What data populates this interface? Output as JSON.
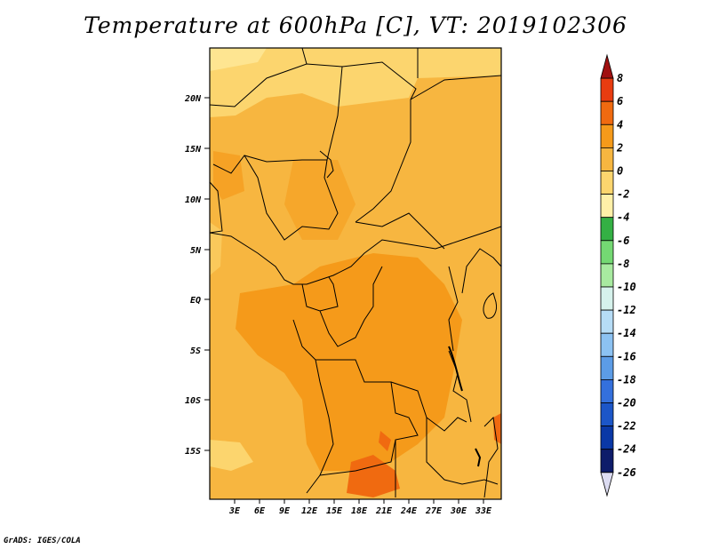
{
  "title": "Temperature at 600hPa [C], VT: 2019102306",
  "credit": "GrADS: IGES/COLA",
  "map": {
    "lat_labels": [
      "20N",
      "15N",
      "10N",
      "5N",
      "EQ",
      "5S",
      "10S",
      "15S"
    ],
    "lon_labels": [
      "3E",
      "6E",
      "9E",
      "12E",
      "15E",
      "18E",
      "21E",
      "24E",
      "27E",
      "30E",
      "33E"
    ]
  },
  "colorbar": {
    "labels": [
      "8",
      "6",
      "4",
      "2",
      "0",
      "-2",
      "-4",
      "-6",
      "-8",
      "-10",
      "-12",
      "-14",
      "-16",
      "-18",
      "-20",
      "-22",
      "-24",
      "-26"
    ],
    "colors": [
      "#a01010",
      "#e83c10",
      "#f06a10",
      "#f59a1a",
      "#f7b640",
      "#fcd56e",
      "#fff0a8",
      "#34b044",
      "#74d873",
      "#a8eaa0",
      "#d6f2ec",
      "#b6dcf6",
      "#8cc2f2",
      "#5c9ce6",
      "#3470dc",
      "#1c56c8",
      "#0a38a6",
      "#0e1c6a",
      "#dcdcf2"
    ]
  },
  "palette": {
    "warm_light": "#fcd56e",
    "warm_mid": "#f7b640",
    "warm_dark": "#f59a1a",
    "hot": "#f06a10",
    "border": "#000000"
  }
}
